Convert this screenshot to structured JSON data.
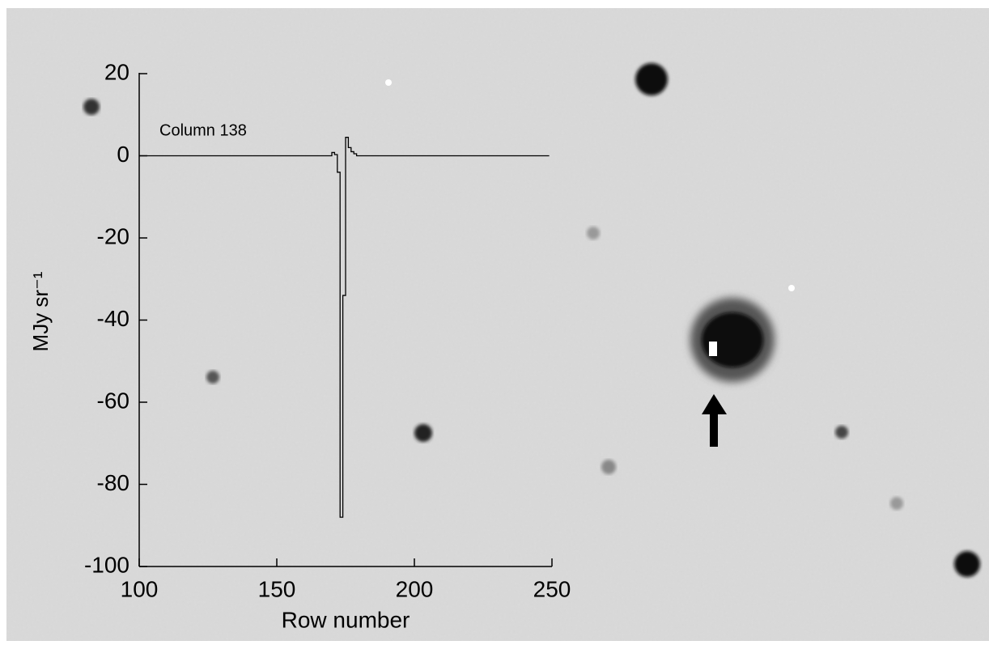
{
  "chart_data": {
    "type": "line",
    "drawstyle": "steps-post",
    "annotation": "Column 138",
    "xlabel": "Row number",
    "ylabel": "MJy sr⁻¹",
    "x": [
      100,
      170,
      171,
      172,
      173,
      174,
      175,
      176,
      177,
      178,
      179,
      249
    ],
    "series": [
      {
        "color": "#000000",
        "values": [
          0,
          0.8,
          0.3,
          -4,
          -88,
          -34,
          4.5,
          2,
          1,
          0.5,
          0,
          0
        ]
      }
    ],
    "xlim": [
      100,
      250
    ],
    "xticks": [
      100,
      150,
      200,
      250
    ],
    "ylim": [
      -100,
      20
    ],
    "yticks": [
      -100,
      -80,
      -60,
      -40,
      -20,
      0,
      20
    ]
  }
}
